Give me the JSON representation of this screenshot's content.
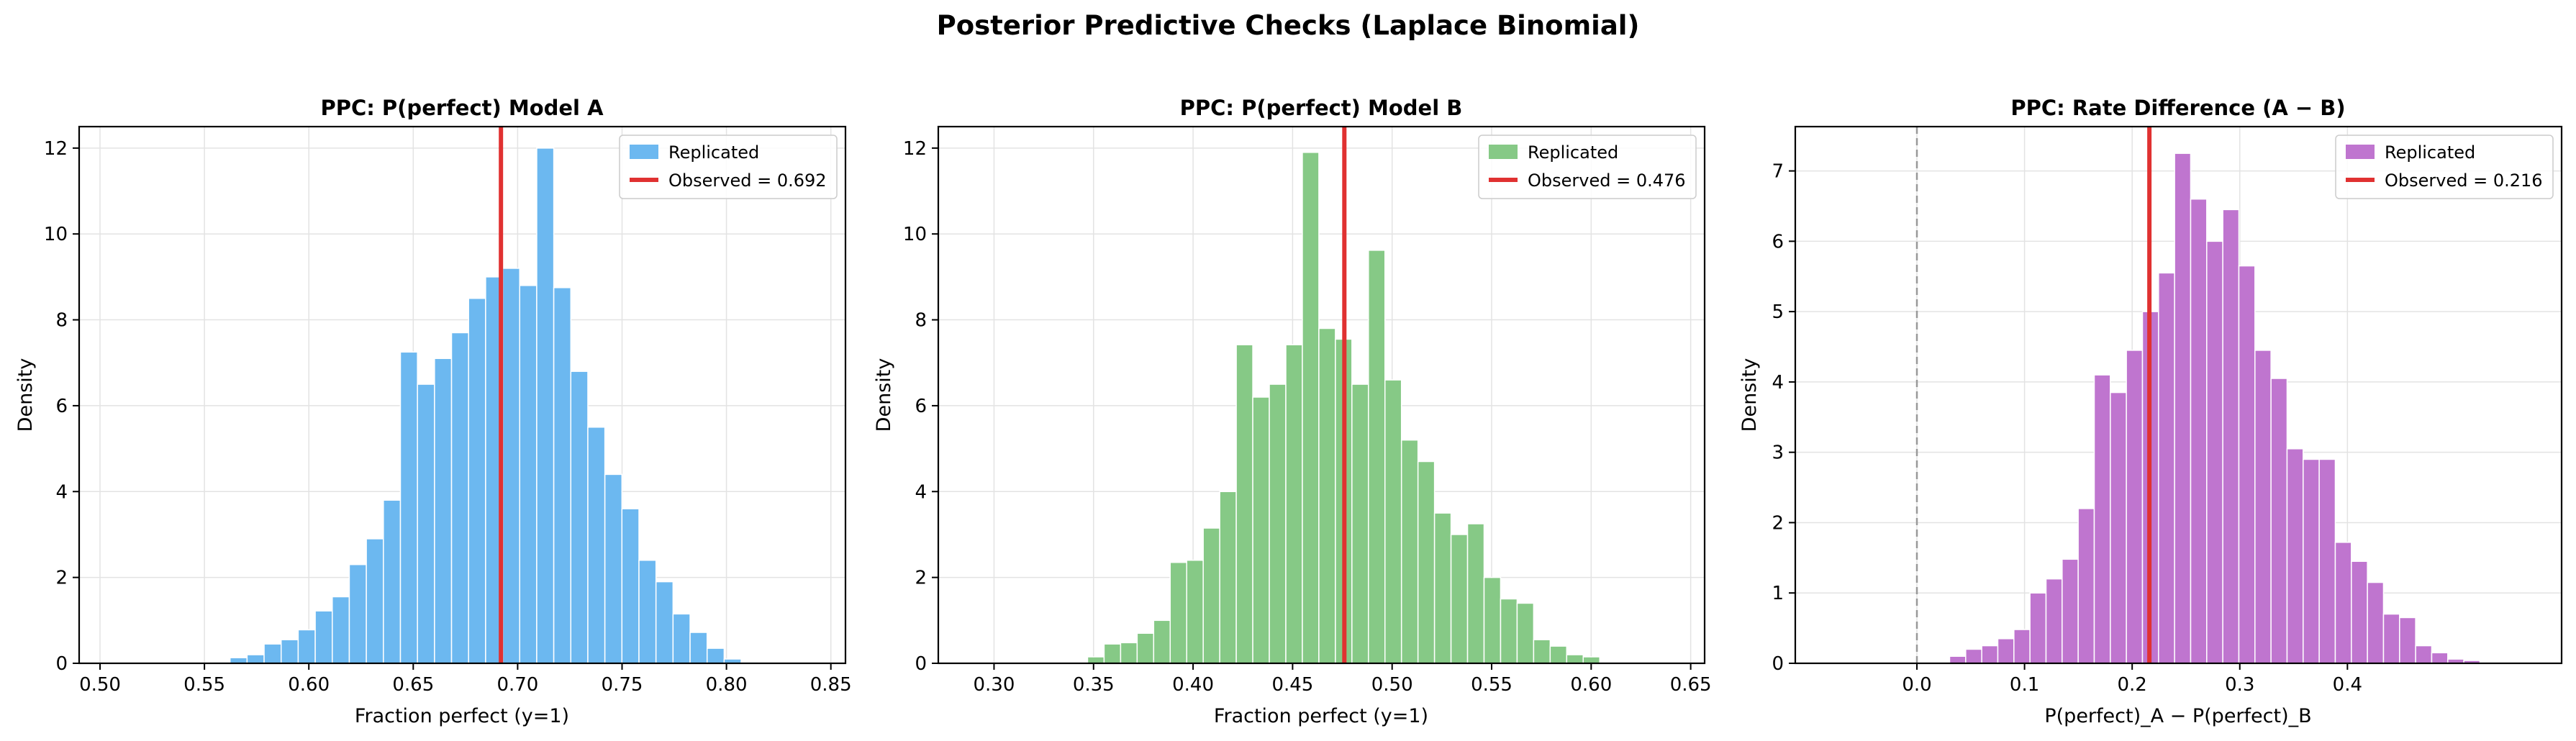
{
  "figure": {
    "title": "Posterior Predictive Checks (Laplace Binomial)"
  },
  "chart_data": [
    {
      "type": "bar",
      "title": "PPC: P(perfect) Model A",
      "xlabel": "Fraction perfect (y=1)",
      "ylabel": "Density",
      "xlim": [
        0.49,
        0.857
      ],
      "ylim": [
        0,
        12.5
      ],
      "xticks": [
        0.5,
        0.55,
        0.6,
        0.65,
        0.7,
        0.75,
        0.8,
        0.85
      ],
      "xtick_labels": [
        "0.50",
        "0.55",
        "0.60",
        "0.65",
        "0.70",
        "0.75",
        "0.80",
        "0.85"
      ],
      "yticks": [
        0,
        2,
        4,
        6,
        8,
        10,
        12
      ],
      "ytick_labels": [
        "0",
        "2",
        "4",
        "6",
        "8",
        "10",
        "12"
      ],
      "grid": true,
      "legend_position": "top-right",
      "bar_color": "#6cb8f0",
      "observed_line_color": "#e03131",
      "series": [
        {
          "name": "Replicated",
          "bin_start": 0.5541,
          "bin_width": 0.00816,
          "values": [
            0.03,
            0.13,
            0.2,
            0.45,
            0.55,
            0.78,
            1.22,
            1.55,
            2.3,
            2.9,
            3.8,
            7.25,
            6.5,
            7.1,
            7.7,
            8.5,
            9.0,
            9.2,
            8.8,
            12.0,
            8.75,
            6.8,
            5.5,
            4.4,
            3.6,
            2.4,
            1.9,
            1.15,
            0.72,
            0.35,
            0.1,
            0.03
          ]
        }
      ],
      "observed": {
        "label": "Observed = 0.692",
        "value": 0.692
      },
      "reference_line": null
    },
    {
      "type": "bar",
      "title": "PPC: P(perfect) Model B",
      "xlabel": "Fraction perfect (y=1)",
      "ylabel": "Density",
      "xlim": [
        0.272,
        0.657
      ],
      "ylim": [
        0,
        12.5
      ],
      "xticks": [
        0.3,
        0.35,
        0.4,
        0.45,
        0.5,
        0.55,
        0.6,
        0.65
      ],
      "xtick_labels": [
        "0.30",
        "0.35",
        "0.40",
        "0.45",
        "0.50",
        "0.55",
        "0.60",
        "0.65"
      ],
      "yticks": [
        0,
        2,
        4,
        6,
        8,
        10,
        12
      ],
      "ytick_labels": [
        "0",
        "2",
        "4",
        "6",
        "8",
        "10",
        "12"
      ],
      "grid": true,
      "legend_position": "top-right",
      "bar_color": "#86c986",
      "observed_line_color": "#e03131",
      "series": [
        {
          "name": "Replicated",
          "bin_start": 0.347,
          "bin_width": 0.0083,
          "values": [
            0.15,
            0.45,
            0.48,
            0.7,
            1.0,
            2.35,
            2.4,
            3.15,
            4.0,
            7.42,
            6.2,
            6.5,
            7.42,
            11.9,
            7.8,
            7.55,
            6.5,
            9.62,
            6.6,
            5.2,
            4.7,
            3.5,
            3.0,
            3.25,
            2.0,
            1.5,
            1.4,
            0.55,
            0.4,
            0.2,
            0.15
          ]
        }
      ],
      "observed": {
        "label": "Observed = 0.476",
        "value": 0.476
      },
      "reference_line": null
    },
    {
      "type": "bar",
      "title": "PPC: Rate Difference (A − B)",
      "xlabel": "P(perfect)_A − P(perfect)_B",
      "ylabel": "Density",
      "xlim": [
        -0.113,
        0.599
      ],
      "ylim": [
        0,
        7.63
      ],
      "xticks": [
        0.0,
        0.1,
        0.2,
        0.3,
        0.4
      ],
      "xtick_labels": [
        "0.0",
        "0.1",
        "0.2",
        "0.3",
        "0.4"
      ],
      "yticks": [
        0,
        1,
        2,
        3,
        4,
        5,
        6,
        7
      ],
      "ytick_labels": [
        "0",
        "1",
        "2",
        "3",
        "4",
        "5",
        "6",
        "7"
      ],
      "grid": true,
      "legend_position": "top-right",
      "bar_color": "#bf75cf",
      "observed_line_color": "#e03131",
      "series": [
        {
          "name": "Replicated",
          "bin_start": 0.0304,
          "bin_width": 0.01493,
          "values": [
            0.1,
            0.2,
            0.25,
            0.35,
            0.48,
            1.0,
            1.2,
            1.48,
            2.2,
            4.1,
            3.85,
            4.45,
            5.0,
            5.55,
            7.25,
            6.6,
            6.0,
            6.45,
            5.65,
            4.45,
            4.05,
            3.05,
            2.9,
            2.9,
            1.72,
            1.45,
            1.15,
            0.7,
            0.65,
            0.25,
            0.15,
            0.06,
            0.04
          ]
        }
      ],
      "observed": {
        "label": "Observed = 0.216",
        "value": 0.216
      },
      "reference_line": {
        "value": 0.0,
        "style": "dashed",
        "color": "#999999"
      }
    }
  ]
}
